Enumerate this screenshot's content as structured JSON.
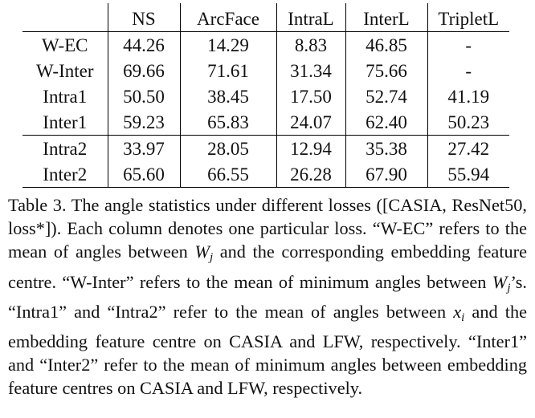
{
  "table": {
    "headers": [
      "",
      "NS",
      "ArcFace",
      "IntraL",
      "InterL",
      "TripletL"
    ],
    "rows": [
      {
        "label": "W-EC",
        "values": [
          "44.26",
          "14.29",
          "8.83",
          "46.85",
          "-"
        ]
      },
      {
        "label": "W-Inter",
        "values": [
          "69.66",
          "71.61",
          "31.34",
          "75.66",
          "-"
        ]
      },
      {
        "label": "Intra1",
        "values": [
          "50.50",
          "38.45",
          "17.50",
          "52.74",
          "41.19"
        ]
      },
      {
        "label": "Inter1",
        "values": [
          "59.23",
          "65.83",
          "24.07",
          "62.40",
          "50.23"
        ]
      },
      {
        "label": "Intra2",
        "values": [
          "33.97",
          "28.05",
          "12.94",
          "35.38",
          "27.42"
        ]
      },
      {
        "label": "Inter2",
        "values": [
          "65.60",
          "66.55",
          "26.28",
          "67.90",
          "55.94"
        ]
      }
    ]
  },
  "caption": {
    "p1": "Table 3. The angle statistics under different losses ([CASIA, ResNet50, loss*]). Each column denotes one particular loss. “W-EC” refers to the mean of angles between ",
    "w1": "W",
    "j1": "j",
    "p2": " and the corresponding embedding feature centre. “W-Inter” refers to the mean of minimum angles between ",
    "w2": "W",
    "j2": "j",
    "p3": "’s. “Intra1” and “Intra2” refer to the mean of angles between ",
    "x": "x",
    "i": "i",
    "p4": " and the embedding feature centre on CASIA and LFW, respectively. “Inter1” and “Inter2” refer to the mean of minimum angles between embedding feature centres on CASIA and LFW, respectively."
  }
}
